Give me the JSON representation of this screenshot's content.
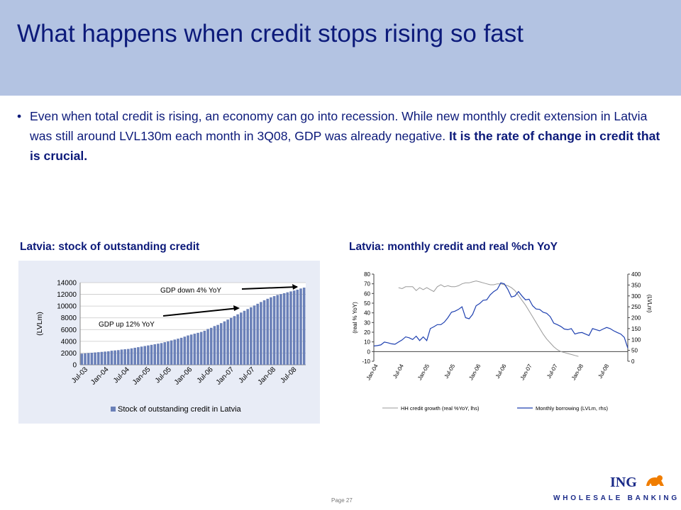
{
  "slide": {
    "title": "What happens when credit stops rising so fast",
    "bullet_text": "Even when total credit is rising, an economy can go into recession. While new monthly credit extension in Latvia was still around LVL130m each month in 3Q08, GDP was already negative. ",
    "bullet_bold": "It is the rate of change in credit that is crucial.",
    "page_label": "Page 27"
  },
  "logo": {
    "brand": "ING",
    "tagline": "WHOLESALE BANKING"
  },
  "colors": {
    "header_bg": "#b3c3e2",
    "title": "#0c1a7a",
    "bar": "#6a80b8",
    "line_blue": "#1e40b0",
    "line_gray": "#9a9a9a"
  },
  "chart_data": [
    {
      "type": "bar",
      "title": "Latvia: stock of outstanding credit",
      "ylabel": "(LVLm)",
      "ylim": [
        0,
        14000
      ],
      "yticks": [
        "14000",
        "12000",
        "10000",
        "8000",
        "6000",
        "4000",
        "2000",
        "0"
      ],
      "xticks": [
        "Jul-03",
        "Jan-04",
        "Jul-04",
        "Jan-05",
        "Jul-05",
        "Jan-06",
        "Jul-06",
        "Jan-07",
        "Jul-07",
        "Jan-08",
        "Jul-08"
      ],
      "series": [
        {
          "name": "Stock of outstanding credit in Latvia",
          "values": [
            1900,
            1950,
            2000,
            2050,
            2100,
            2150,
            2200,
            2250,
            2300,
            2400,
            2450,
            2500,
            2600,
            2650,
            2700,
            2800,
            2900,
            3000,
            3100,
            3200,
            3300,
            3400,
            3500,
            3600,
            3700,
            3850,
            4000,
            4150,
            4300,
            4450,
            4600,
            4800,
            5000,
            5150,
            5300,
            5450,
            5600,
            5800,
            6100,
            6300,
            6600,
            6800,
            7100,
            7400,
            7700,
            8000,
            8300,
            8600,
            8900,
            9200,
            9500,
            9800,
            10100,
            10400,
            10700,
            11000,
            11250,
            11500,
            11700,
            11900,
            12050,
            12200,
            12350,
            12500,
            12650,
            12800,
            13000,
            13150
          ]
        }
      ],
      "annotations": [
        "GDP down 4% YoY",
        "GDP up 12% YoY"
      ]
    },
    {
      "type": "line",
      "title": "Latvia: monthly credit and real %ch YoY",
      "ylabel_left": "(real % YoY)",
      "ylabel_right": "(LVLm)",
      "ylim_left": [
        -10,
        80
      ],
      "ylim_right": [
        0,
        400
      ],
      "yticks_left": [
        "80",
        "70",
        "60",
        "50",
        "40",
        "30",
        "20",
        "10",
        "0",
        "-10"
      ],
      "yticks_right": [
        "400",
        "350",
        "300",
        "250",
        "200",
        "150",
        "100",
        "50",
        "0"
      ],
      "xticks": [
        "Jan-04",
        "Jul-04",
        "Jan-05",
        "Jul-05",
        "Jan-06",
        "Jul-06",
        "Jan-07",
        "Jul-07",
        "Jan-08",
        "Jul-08"
      ],
      "series": [
        {
          "name": "HH credit growth (real %YoY, lhs)",
          "axis": "left",
          "x_start": 7,
          "values": [
            66,
            65,
            67,
            67,
            67,
            63,
            66,
            64,
            66,
            64,
            62,
            67,
            69,
            67,
            68,
            67,
            67,
            68,
            70,
            71,
            71,
            72,
            73,
            72,
            71,
            70,
            69,
            69,
            70,
            70,
            69,
            68,
            66,
            63,
            58,
            53,
            48,
            42,
            36,
            30,
            24,
            18,
            13,
            9,
            5,
            2,
            0,
            -1,
            -2,
            -3,
            -4,
            -5
          ]
        },
        {
          "name": "Monthly borrowing (LVLm, rhs)",
          "axis": "right",
          "x_start": 0,
          "values": [
            70,
            72,
            75,
            88,
            85,
            80,
            78,
            88,
            98,
            112,
            108,
            100,
            115,
            95,
            112,
            95,
            150,
            158,
            168,
            168,
            180,
            200,
            225,
            230,
            238,
            250,
            200,
            195,
            215,
            255,
            265,
            280,
            282,
            305,
            320,
            330,
            360,
            355,
            330,
            295,
            300,
            320,
            300,
            282,
            285,
            255,
            240,
            238,
            225,
            220,
            205,
            175,
            168,
            160,
            148,
            145,
            150,
            125,
            130,
            132,
            125,
            118,
            150,
            145,
            140,
            148,
            155,
            150,
            140,
            132,
            125,
            110,
            60
          ]
        }
      ]
    }
  ]
}
